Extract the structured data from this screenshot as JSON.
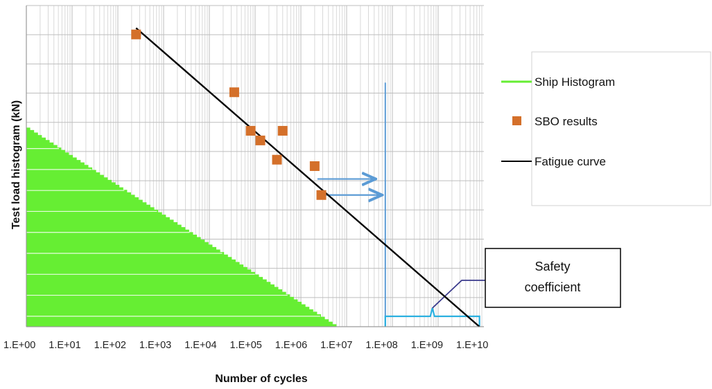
{
  "chart_data": {
    "type": "scatter",
    "xlabel": "Number of cycles",
    "ylabel": "Test load histogram (kN)",
    "x_scale": "log10",
    "xlim": [
      1,
      10000000000
    ],
    "x_tick_labels": [
      "1.E+00",
      "1.E+01",
      "1.E+02",
      "1.E+03",
      "1.E+04",
      "1.E+05",
      "1.E+06",
      "1.E+07",
      "1.E+08",
      "1.E+09",
      "1.E+10"
    ],
    "y_tick_labels_shown": false,
    "grid": true,
    "legend_position": "right",
    "series": [
      {
        "name": "Ship Histogram",
        "kind": "filled-histogram",
        "color": "#66ee33",
        "x": [
          1,
          6000000
        ],
        "y": [
          0.62,
          0.0
        ]
      },
      {
        "name": "SBO results",
        "kind": "markers",
        "color": "#d4702a",
        "x": [
          250,
          35000,
          80000,
          130000,
          400000,
          300000,
          2000000,
          2800000
        ],
        "y": [
          0.91,
          0.73,
          0.61,
          0.58,
          0.61,
          0.52,
          0.5,
          0.41
        ]
      },
      {
        "name": "Fatigue curve",
        "kind": "line",
        "color": "#000000",
        "x": [
          250,
          8000000000
        ],
        "y": [
          0.93,
          0.0
        ]
      }
    ],
    "annotations": {
      "arrow_color": "#5b9bd5",
      "arrows": [
        {
          "from": [
            2300000,
            0.46
          ],
          "to": [
            40000000,
            0.46
          ]
        },
        {
          "from": [
            3000000,
            0.41
          ],
          "to": [
            55000000,
            0.41
          ]
        }
      ],
      "limit_line": {
        "x": 70000000,
        "y_top": 0.76,
        "color": "#5b9bd5"
      },
      "bracket": {
        "x_from": 70000000,
        "x_to": 8000000000,
        "color": "#2ab0e0"
      },
      "callout": {
        "text_lines": [
          "Safety",
          "coefficient"
        ],
        "leader_color": "#3a3a8c"
      }
    }
  }
}
